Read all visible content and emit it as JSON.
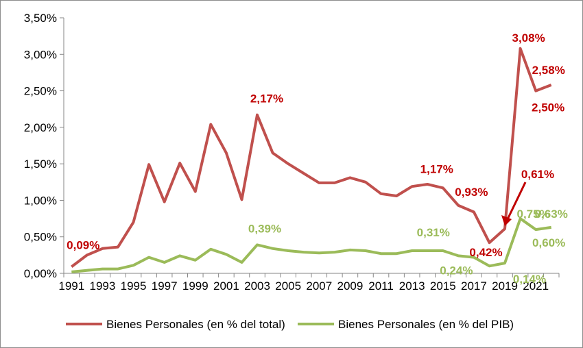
{
  "chart_data": {
    "type": "line",
    "title": "",
    "xlabel": "",
    "ylabel": "",
    "ylim": [
      0,
      0.035
    ],
    "grid": false,
    "legend_position": "bottom",
    "x": [
      1991,
      1992,
      1993,
      1994,
      1995,
      1996,
      1997,
      1998,
      1999,
      2000,
      2001,
      2002,
      2003,
      2004,
      2005,
      2006,
      2007,
      2008,
      2009,
      2010,
      2011,
      2012,
      2013,
      2014,
      2015,
      2016,
      2017,
      2018,
      2019,
      2020,
      2021,
      2022
    ],
    "x_tick_labels": [
      "1991",
      "1993",
      "1995",
      "1997",
      "1999",
      "2001",
      "2003",
      "2005",
      "2007",
      "2009",
      "2011",
      "2013",
      "2015",
      "2017",
      "2019",
      "2021"
    ],
    "y_ticks": [
      0,
      0.005,
      0.01,
      0.015,
      0.02,
      0.025,
      0.03,
      0.035
    ],
    "y_tick_labels": [
      "0,00%",
      "0,50%",
      "1,00%",
      "1,50%",
      "2,00%",
      "2,50%",
      "3,00%",
      "3,50%"
    ],
    "series": [
      {
        "name": "Bienes Personales (en % del total)",
        "color": "#c0504d",
        "values": [
          0.0009,
          0.0025,
          0.0034,
          0.0036,
          0.007,
          0.0149,
          0.0098,
          0.0151,
          0.0112,
          0.0204,
          0.0165,
          0.0101,
          0.0217,
          0.0165,
          0.015,
          0.0137,
          0.0124,
          0.0124,
          0.0131,
          0.0125,
          0.0109,
          0.0106,
          0.0119,
          0.0122,
          0.0117,
          0.0093,
          0.0084,
          0.0042,
          0.0061,
          0.0308,
          0.025,
          0.0258
        ]
      },
      {
        "name": "Bienes Personales (en % del PIB)",
        "color": "#9bbb59",
        "values": [
          0.0002,
          0.0004,
          0.0006,
          0.0006,
          0.0011,
          0.0022,
          0.0015,
          0.0024,
          0.0018,
          0.0033,
          0.0026,
          0.0015,
          0.0039,
          0.0034,
          0.0031,
          0.0029,
          0.0028,
          0.0029,
          0.0032,
          0.0031,
          0.0027,
          0.0027,
          0.0031,
          0.0031,
          0.0031,
          0.0024,
          0.0022,
          0.001,
          0.0014,
          0.0075,
          0.006,
          0.0063
        ]
      }
    ],
    "annotations": [
      {
        "text": "0,09%",
        "series": 0,
        "year": 1991
      },
      {
        "text": "2,17%",
        "series": 0,
        "year": 2003
      },
      {
        "text": "1,17%",
        "series": 0,
        "year": 2015
      },
      {
        "text": "0,93%",
        "series": 0,
        "year": 2016
      },
      {
        "text": "0,42%",
        "series": 0,
        "year": 2018
      },
      {
        "text": "0,61%",
        "series": 0,
        "year": 2019
      },
      {
        "text": "3,08%",
        "series": 0,
        "year": 2020
      },
      {
        "text": "2,50%",
        "series": 0,
        "year": 2021
      },
      {
        "text": "2,58%",
        "series": 0,
        "year": 2022
      },
      {
        "text": "0,39%",
        "series": 1,
        "year": 2003
      },
      {
        "text": "0,31%",
        "series": 1,
        "year": 2015
      },
      {
        "text": "0,24%",
        "series": 1,
        "year": 2016
      },
      {
        "text": "0,14%",
        "series": 1,
        "year": 2019
      },
      {
        "text": "0,75%",
        "series": 1,
        "year": 2020
      },
      {
        "text": "0,60%",
        "series": 1,
        "year": 2021
      },
      {
        "text": "0,63%",
        "series": 1,
        "year": 2022
      }
    ]
  }
}
